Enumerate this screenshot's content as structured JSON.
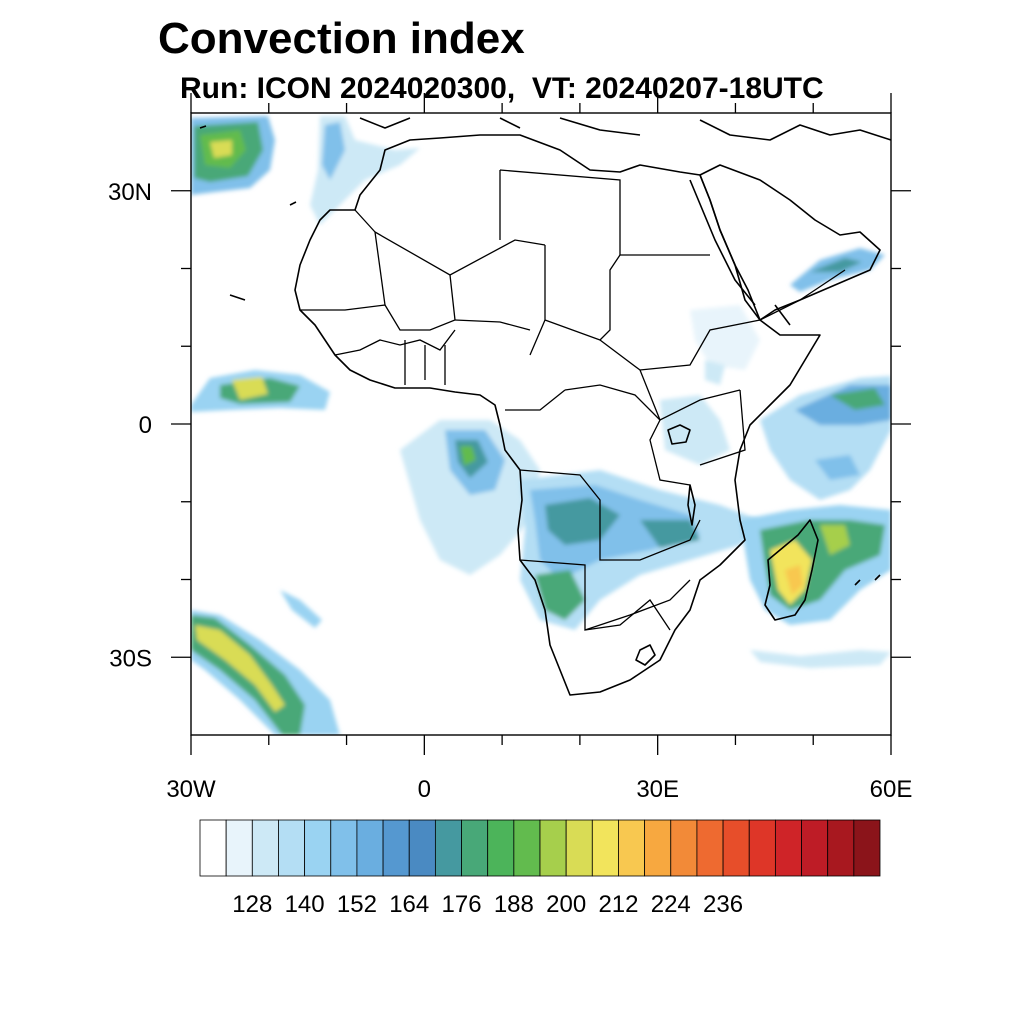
{
  "title": "Convection index",
  "subtitle": "Run: ICON 2024020300,  VT: 20240207-18UTC",
  "map": {
    "lon_range": [
      -30,
      60
    ],
    "lat_range": [
      -40,
      40
    ],
    "x_ticks": [
      {
        "lon": -30,
        "label": "30W"
      },
      {
        "lon": 0,
        "label": "0"
      },
      {
        "lon": 30,
        "label": "30E"
      },
      {
        "lon": 60,
        "label": "60E"
      }
    ],
    "y_ticks": [
      {
        "lat": 30,
        "label": "30N"
      },
      {
        "lat": 0,
        "label": "0"
      },
      {
        "lat": -30,
        "label": "30S"
      }
    ],
    "minor_lon_ticks": [
      -20,
      -10,
      10,
      20,
      40,
      50
    ],
    "minor_lat_ticks": [
      20,
      10,
      -10,
      -20
    ]
  },
  "colorbar": {
    "colors": [
      "#ffffff",
      "#e8f4fb",
      "#cde9f6",
      "#b4def4",
      "#9ad3f2",
      "#80c0ea",
      "#6aaee0",
      "#5598d0",
      "#4a8ac2",
      "#4599a0",
      "#48a878",
      "#4cb45a",
      "#62bb4e",
      "#a6cf4c",
      "#d9dc55",
      "#f2e45c",
      "#f8c850",
      "#f7a840",
      "#f28a38",
      "#ee6a30",
      "#e74e2a",
      "#de3628",
      "#cf2428",
      "#be1c26",
      "#a8181f",
      "#8b141a"
    ],
    "labels": [
      "128",
      "140",
      "152",
      "164",
      "176",
      "188",
      "200",
      "212",
      "224",
      "236"
    ]
  },
  "chart_data": {
    "type": "heatmap",
    "title": "Convection index",
    "subtitle": "Run: ICON 2024020300,  VT: 20240207-18UTC",
    "x_axis": {
      "range": [
        -30,
        60
      ],
      "tick_labels": [
        "30W",
        "0",
        "30E",
        "60E"
      ]
    },
    "y_axis": {
      "range": [
        -40,
        40
      ],
      "tick_labels": [
        "30N",
        "0",
        "30S"
      ]
    },
    "colorbar_tick_labels": [
      128,
      140,
      152,
      164,
      176,
      188,
      200,
      212,
      224,
      236
    ],
    "features": [
      {
        "region": "North Atlantic near 25W 35N",
        "level": "green-yellow"
      },
      {
        "region": "Equatorial Atlantic near 25W 3N",
        "level": "yellow-green"
      },
      {
        "region": "South Atlantic near 25W 30S",
        "level": "yellow-green"
      },
      {
        "region": "Madagascar / Mozambique Channel",
        "level": "yellow-green"
      },
      {
        "region": "Southern and central Africa",
        "level": "blue-green"
      },
      {
        "region": "Western Indian Ocean near equator",
        "level": "blue-green"
      },
      {
        "region": "Arabian Peninsula / Persian Gulf",
        "level": "light blue"
      }
    ]
  }
}
